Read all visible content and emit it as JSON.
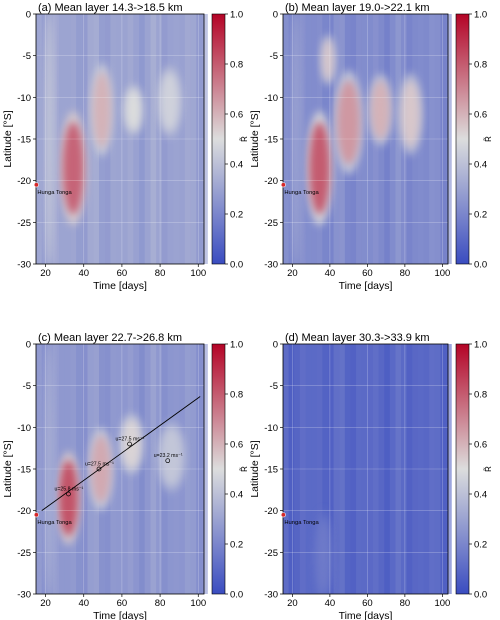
{
  "colors": {
    "low": "#3a4cc0",
    "mid": "#dcdddd",
    "high": "#b40426"
  },
  "chart_data": [
    {
      "type": "heatmap",
      "title": "(a) Mean layer 14.3->18.5 km",
      "xlabel": "Time [days]",
      "ylabel": "Latitude [°S]",
      "xlim": [
        15,
        103
      ],
      "ylim": [
        -30,
        0
      ],
      "xticks": [
        "20",
        "40",
        "60",
        "80",
        "100"
      ],
      "yticks": [
        "-30",
        "-25",
        "-20",
        "-15",
        "-10",
        "-5",
        "0"
      ],
      "colorbar": {
        "label": "R̃",
        "ticks": [
          "0.0",
          "0.2",
          "0.4",
          "0.6",
          "0.8",
          "1.0"
        ],
        "range": [
          0,
          1
        ]
      },
      "base_level": 0.3,
      "features": [
        {
          "t0": 29,
          "t1": 40,
          "lat0": -24,
          "lat1": -13,
          "peak": 0.78
        },
        {
          "t0": 45,
          "t1": 54,
          "lat0": -16,
          "lat1": -7,
          "peak": 0.6
        },
        {
          "t0": 62,
          "t1": 70,
          "lat0": -14,
          "lat1": -9,
          "peak": 0.5
        },
        {
          "t0": 80,
          "t1": 90,
          "lat0": -14,
          "lat1": -7,
          "peak": 0.46
        },
        {
          "t0": 20,
          "t1": 24,
          "lat0": -30,
          "lat1": 0,
          "peak": 0.42
        }
      ],
      "marker": {
        "label": "Hunga Tonga",
        "t": 15.2,
        "lat": -20.5
      }
    },
    {
      "type": "heatmap",
      "title": "(b) Mean layer 19.0->22.1 km",
      "xlabel": "Time [days]",
      "ylabel": "Latitude [°S]",
      "xlim": [
        15,
        103
      ],
      "ylim": [
        -30,
        0
      ],
      "xticks": [
        "20",
        "40",
        "60",
        "80",
        "100"
      ],
      "yticks": [
        "-30",
        "-25",
        "-20",
        "-15",
        "-10",
        "-5",
        "0"
      ],
      "colorbar": {
        "label": "R̃",
        "ticks": [
          "0.0",
          "0.2",
          "0.4",
          "0.6",
          "0.8",
          "1.0"
        ],
        "range": [
          0,
          1
        ]
      },
      "base_level": 0.22,
      "features": [
        {
          "t0": 29,
          "t1": 40,
          "lat0": -24,
          "lat1": -13,
          "peak": 0.8
        },
        {
          "t0": 44,
          "t1": 56,
          "lat0": -18,
          "lat1": -8,
          "peak": 0.66
        },
        {
          "t0": 62,
          "t1": 72,
          "lat0": -15,
          "lat1": -8,
          "peak": 0.6
        },
        {
          "t0": 78,
          "t1": 88,
          "lat0": -16,
          "lat1": -8,
          "peak": 0.55
        },
        {
          "t0": 36,
          "t1": 42,
          "lat0": -8,
          "lat1": -3,
          "peak": 0.55
        },
        {
          "t0": 20,
          "t1": 24,
          "lat0": -30,
          "lat1": 0,
          "peak": 0.3
        }
      ],
      "marker": {
        "label": "Hunga Tonga",
        "t": 15.2,
        "lat": -20.5
      }
    },
    {
      "type": "heatmap",
      "title": "(c) Mean layer 22.7->26.8 km",
      "xlabel": "Time [days]",
      "ylabel": "Latitude [°S]",
      "xlim": [
        15,
        103
      ],
      "ylim": [
        -30,
        0
      ],
      "xticks": [
        "20",
        "40",
        "60",
        "80",
        "100"
      ],
      "yticks": [
        "-30",
        "-25",
        "-20",
        "-15",
        "-10",
        "-5",
        "0"
      ],
      "colorbar": {
        "label": "R̃",
        "ticks": [
          "0.0",
          "0.2",
          "0.4",
          "0.6",
          "0.8",
          "1.0"
        ],
        "range": [
          0,
          1
        ]
      },
      "base_level": 0.26,
      "features": [
        {
          "t0": 27,
          "t1": 37,
          "lat0": -23,
          "lat1": -14,
          "peak": 0.82
        },
        {
          "t0": 44,
          "t1": 54,
          "lat0": -19,
          "lat1": -11,
          "peak": 0.62
        },
        {
          "t0": 60,
          "t1": 70,
          "lat0": -15,
          "lat1": -9,
          "peak": 0.52
        },
        {
          "t0": 80,
          "t1": 92,
          "lat0": -17,
          "lat1": -10,
          "peak": 0.42
        },
        {
          "t0": 20,
          "t1": 24,
          "lat0": -30,
          "lat1": 0,
          "peak": 0.34
        }
      ],
      "marker": {
        "label": "Hunga Tonga",
        "t": 15.2,
        "lat": -20.5
      },
      "fit_line": {
        "x": [
          18,
          101
        ],
        "y": [
          -20,
          -6.3
        ]
      },
      "annotations": [
        {
          "t": 32,
          "lat": -18,
          "text": "u=25.8 ms⁻¹"
        },
        {
          "t": 48,
          "lat": -15,
          "text": "u=27.5 ms⁻¹"
        },
        {
          "t": 64,
          "lat": -12,
          "text": "u=27.5 ms⁻¹"
        },
        {
          "t": 84,
          "lat": -14,
          "text": "u=23.2 ms⁻¹"
        }
      ]
    },
    {
      "type": "heatmap",
      "title": "(d) Mean layer 30.3->33.9 km",
      "xlabel": "Time [days]",
      "ylabel": "Latitude [°S]",
      "xlim": [
        15,
        103
      ],
      "ylim": [
        -30,
        0
      ],
      "xticks": [
        "20",
        "40",
        "60",
        "80",
        "100"
      ],
      "yticks": [
        "-30",
        "-25",
        "-20",
        "-15",
        "-10",
        "-5",
        "0"
      ],
      "colorbar": {
        "label": "R̃",
        "ticks": [
          "0.0",
          "0.2",
          "0.4",
          "0.6",
          "0.8",
          "1.0"
        ],
        "range": [
          0,
          1
        ]
      },
      "base_level": 0.1,
      "features": [
        {
          "t0": 33,
          "t1": 40,
          "lat0": -30,
          "lat1": -21,
          "peak": 0.16
        }
      ],
      "marker": {
        "label": "Hunga Tonga",
        "t": 15.2,
        "lat": -20.5
      }
    }
  ]
}
